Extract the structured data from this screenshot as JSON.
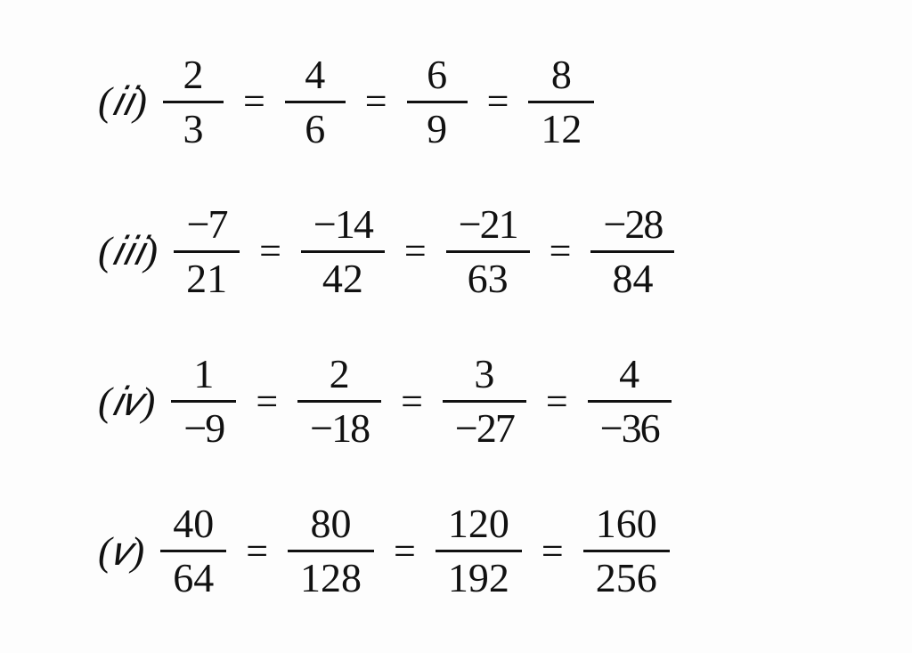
{
  "equations": [
    {
      "label": "(𝑖𝑖)",
      "fractions": [
        {
          "num": "2",
          "den": "3"
        },
        {
          "num": "4",
          "den": "6"
        },
        {
          "num": "6",
          "den": "9"
        },
        {
          "num": "8",
          "den": "12"
        }
      ]
    },
    {
      "label": "(𝑖𝑖𝑖)",
      "fractions": [
        {
          "num": "−7",
          "den": "21"
        },
        {
          "num": "−14",
          "den": "42"
        },
        {
          "num": "−21",
          "den": "63"
        },
        {
          "num": "−28",
          "den": "84"
        }
      ]
    },
    {
      "label": "(𝑖𝑣)",
      "fractions": [
        {
          "num": "1",
          "den": "−9"
        },
        {
          "num": "2",
          "den": "−18"
        },
        {
          "num": "3",
          "den": "−27"
        },
        {
          "num": "4",
          "den": "−36"
        }
      ]
    },
    {
      "label": "(𝑣)",
      "fractions": [
        {
          "num": "40",
          "den": "64"
        },
        {
          "num": "80",
          "den": "128"
        },
        {
          "num": "120",
          "den": "192"
        },
        {
          "num": "160",
          "den": "256"
        }
      ]
    }
  ],
  "equals": "="
}
